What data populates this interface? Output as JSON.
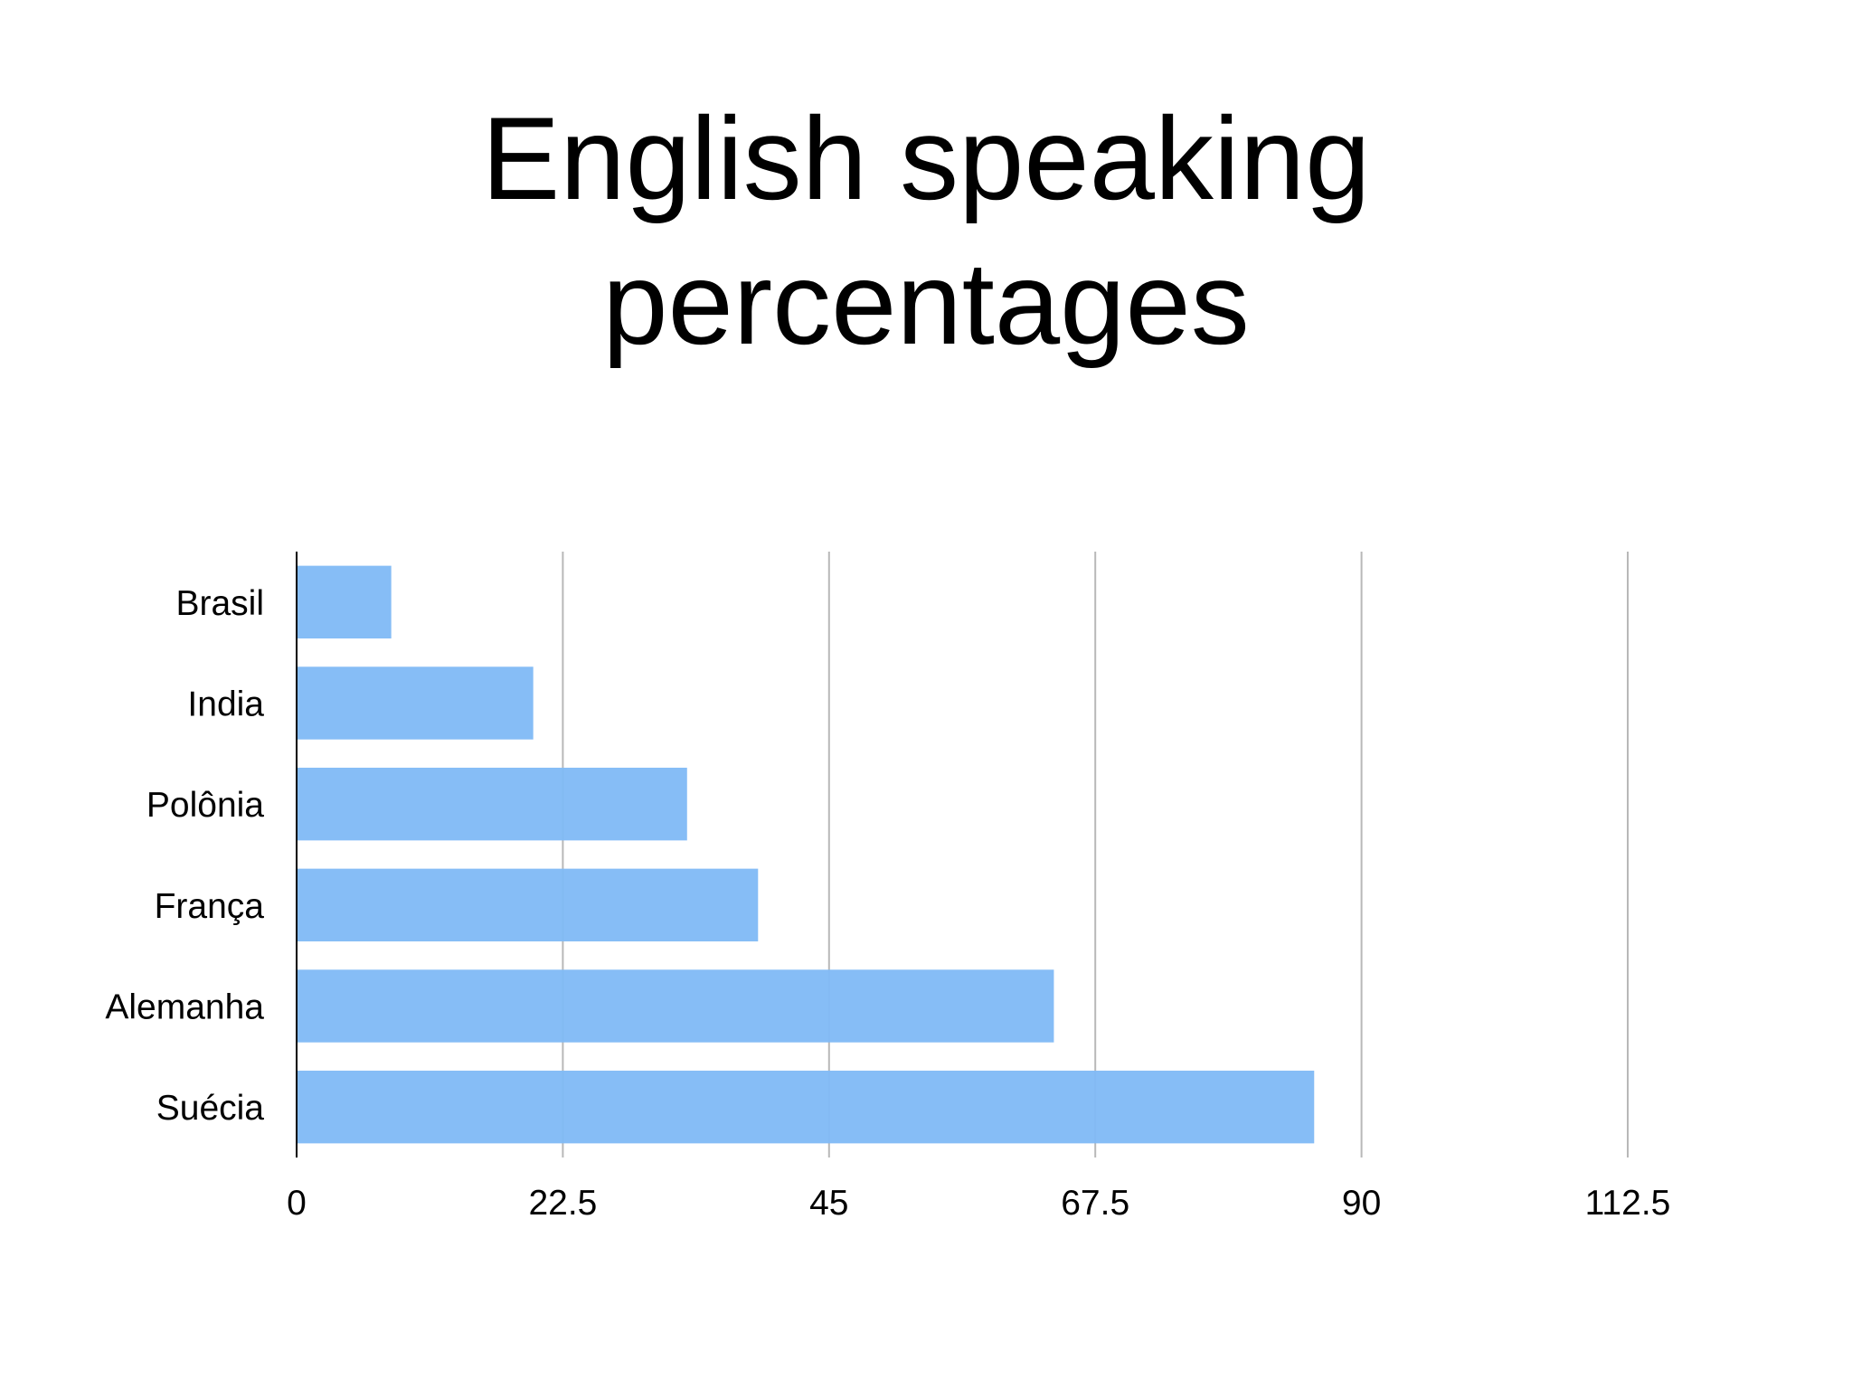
{
  "title_lines": [
    "English speaking",
    "percentages"
  ],
  "chart_data": {
    "type": "bar",
    "orientation": "horizontal",
    "title": "English speaking percentages",
    "categories": [
      "Brasil",
      "India",
      "Polônia",
      "França",
      "Alemanha",
      "Suécia"
    ],
    "values": [
      8,
      20,
      33,
      39,
      64,
      86
    ],
    "xlabel": "",
    "ylabel": "",
    "xlim": [
      0,
      112.5
    ],
    "x_ticks": [
      "0",
      "22.5",
      "45",
      "67.5",
      "90",
      "112.5"
    ],
    "grid": "vertical",
    "bar_color": "#7fb9f6",
    "legend": "none"
  }
}
